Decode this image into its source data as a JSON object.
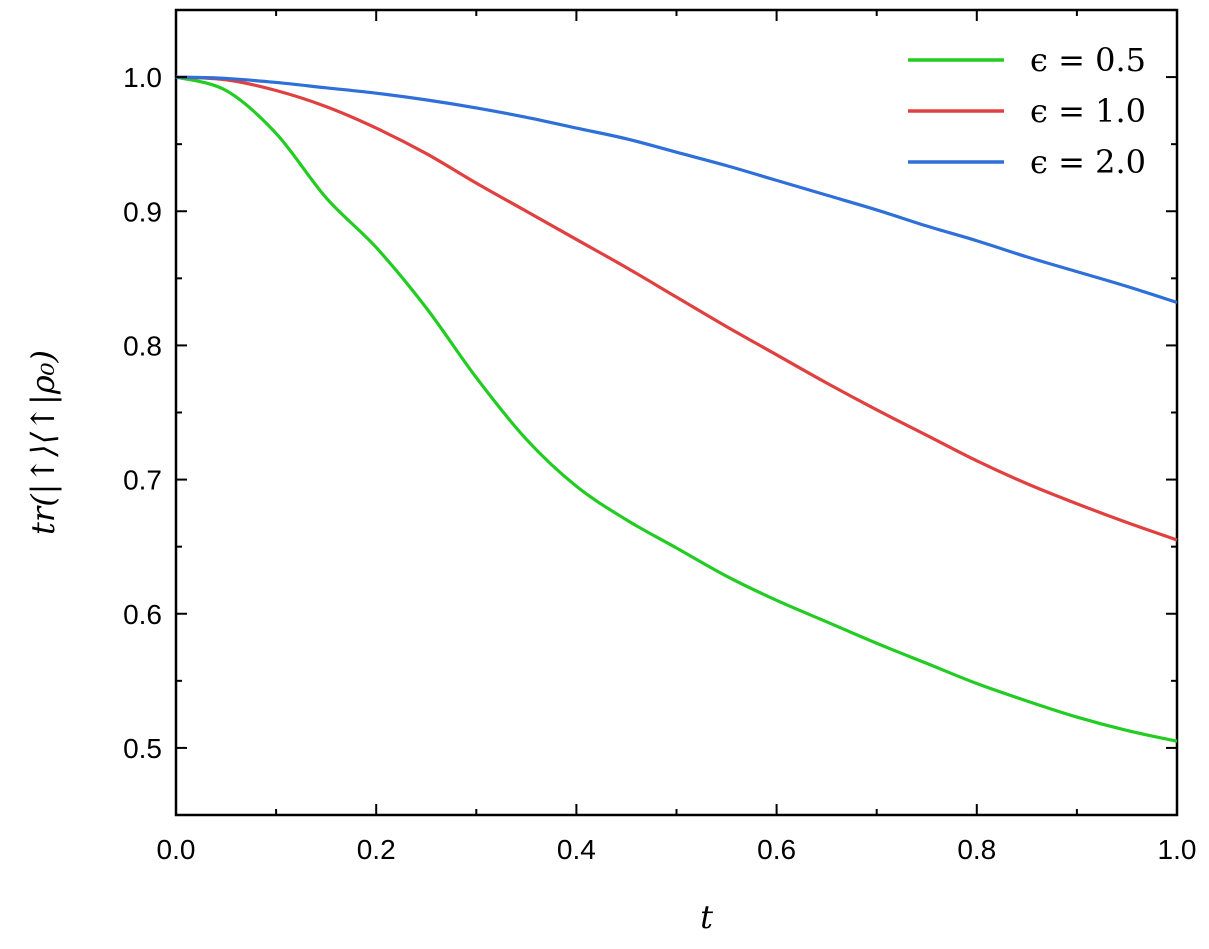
{
  "chart_data": {
    "type": "line",
    "title": "",
    "xlabel": "t",
    "ylabel": "tr(|↑⟩⟨↑|ρ₀)",
    "xlim": [
      0.0,
      1.0
    ],
    "ylim": [
      0.45,
      1.05
    ],
    "xticks": [
      "0.0",
      "0.2",
      "0.4",
      "0.6",
      "0.8",
      "1.0"
    ],
    "yticks": [
      "0.5",
      "0.6",
      "0.7",
      "0.8",
      "0.9",
      "1.0"
    ],
    "grid": false,
    "legend_position": "top-right",
    "x": [
      0.0,
      0.05,
      0.1,
      0.15,
      0.2,
      0.25,
      0.3,
      0.35,
      0.4,
      0.45,
      0.5,
      0.55,
      0.6,
      0.65,
      0.7,
      0.75,
      0.8,
      0.85,
      0.9,
      0.95,
      1.0
    ],
    "series": [
      {
        "name": "ϵ = 0.5",
        "color": "#22cc22",
        "values": [
          1.0,
          0.99,
          0.958,
          0.91,
          0.873,
          0.828,
          0.776,
          0.73,
          0.695,
          0.67,
          0.649,
          0.628,
          0.61,
          0.594,
          0.578,
          0.563,
          0.548,
          0.535,
          0.523,
          0.513,
          0.505
        ]
      },
      {
        "name": "ϵ = 1.0",
        "color": "#e04040",
        "values": [
          1.0,
          0.998,
          0.99,
          0.978,
          0.962,
          0.943,
          0.921,
          0.9,
          0.879,
          0.858,
          0.836,
          0.814,
          0.793,
          0.772,
          0.752,
          0.733,
          0.714,
          0.697,
          0.682,
          0.668,
          0.655
        ]
      },
      {
        "name": "ϵ = 2.0",
        "color": "#2f6fd8",
        "values": [
          1.0,
          0.999,
          0.996,
          0.992,
          0.988,
          0.983,
          0.977,
          0.97,
          0.962,
          0.954,
          0.944,
          0.934,
          0.923,
          0.912,
          0.901,
          0.889,
          0.878,
          0.866,
          0.855,
          0.844,
          0.832
        ]
      }
    ]
  }
}
